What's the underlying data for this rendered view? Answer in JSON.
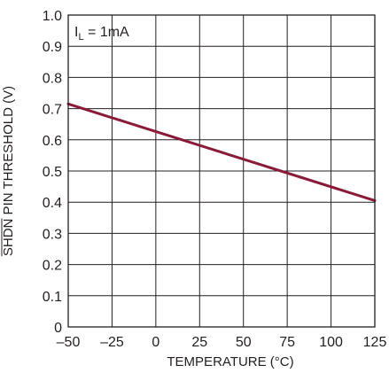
{
  "chart_data": {
    "type": "line",
    "xlabel": "TEMPERATURE (°C)",
    "ylabel_overline": "SHDN",
    "ylabel_rest": " PIN THRESHOLD (V)",
    "xlim": [
      -50,
      125
    ],
    "ylim": [
      0,
      1.0
    ],
    "x_ticks": [
      -50,
      -25,
      0,
      25,
      50,
      75,
      100,
      125
    ],
    "x_tick_labels": [
      "–50",
      "–25",
      "0",
      "25",
      "50",
      "75",
      "100",
      "125"
    ],
    "y_ticks": [
      0,
      0.1,
      0.2,
      0.3,
      0.4,
      0.5,
      0.6,
      0.7,
      0.8,
      0.9,
      1.0
    ],
    "y_tick_labels": [
      "0",
      "0.1",
      "0.2",
      "0.3",
      "0.4",
      "0.5",
      "0.6",
      "0.7",
      "0.8",
      "0.9",
      "1.0"
    ],
    "grid": true,
    "annotation": {
      "main": "I",
      "sub": "L",
      "rest": " = 1mA"
    },
    "series": [
      {
        "color": "#8b1a3a",
        "x": [
          -50,
          125
        ],
        "y": [
          0.715,
          0.405
        ]
      }
    ]
  }
}
